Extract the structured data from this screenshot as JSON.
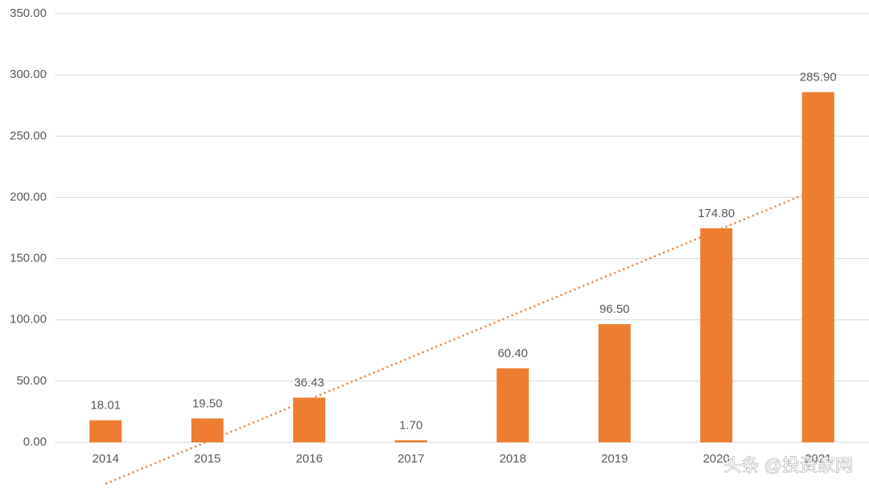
{
  "chart_data": {
    "type": "bar",
    "categories": [
      "2014",
      "2015",
      "2016",
      "2017",
      "2018",
      "2019",
      "2020",
      "2021"
    ],
    "values": [
      18.01,
      19.5,
      36.43,
      1.7,
      60.4,
      96.5,
      174.8,
      285.9
    ],
    "value_labels": [
      "18.01",
      "19.50",
      "36.43",
      "1.70",
      "60.40",
      "96.50",
      "174.80",
      "285.90"
    ],
    "color": "#ed7d31",
    "ylim": [
      0,
      350
    ],
    "yticks": [
      {
        "value": 0,
        "label": "0.00"
      },
      {
        "value": 50,
        "label": "50.00"
      },
      {
        "value": 100,
        "label": "100.00"
      },
      {
        "value": 150,
        "label": "150.00"
      },
      {
        "value": 200,
        "label": "200.00"
      },
      {
        "value": 250,
        "label": "250.00"
      },
      {
        "value": 300,
        "label": "300.00"
      },
      {
        "value": 350,
        "label": "350.00"
      }
    ],
    "grid": true,
    "trendline": "linear",
    "watermark": "头条 @投资家网"
  }
}
